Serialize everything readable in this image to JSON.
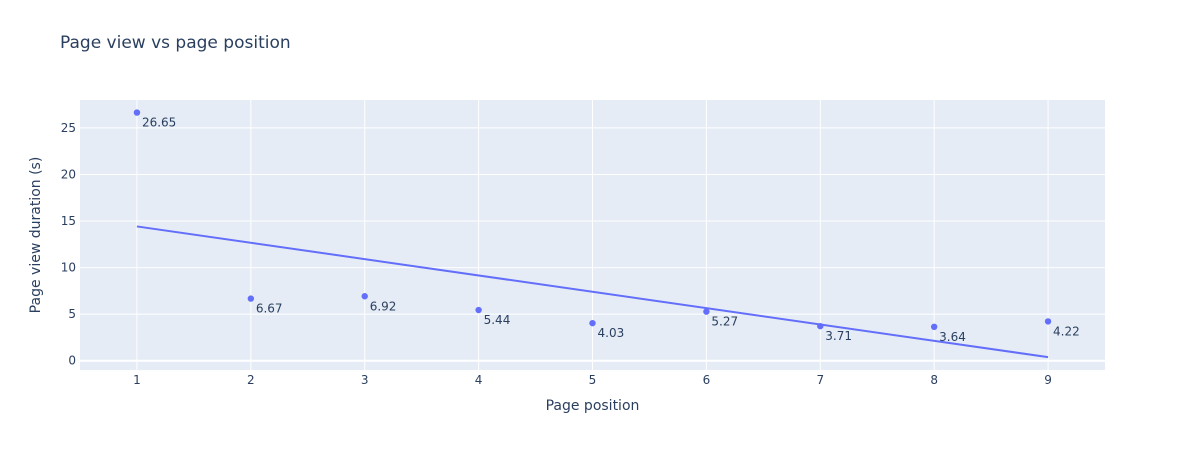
{
  "chart_data": {
    "type": "scatter",
    "title": "Page view vs page position",
    "xlabel": "Page position",
    "ylabel": "Page view duration (s)",
    "xlim": [
      0.5,
      9.5
    ],
    "ylim": [
      -1,
      28
    ],
    "x_ticks": [
      1,
      2,
      3,
      4,
      5,
      6,
      7,
      8,
      9
    ],
    "y_ticks": [
      0,
      5,
      10,
      15,
      20,
      25
    ],
    "grid": true,
    "series": [
      {
        "mode": "markers+text",
        "x": [
          1,
          2,
          3,
          4,
          5,
          6,
          7,
          8,
          9
        ],
        "y": [
          26.65,
          6.67,
          6.92,
          5.44,
          4.03,
          5.27,
          3.71,
          3.64,
          4.22
        ],
        "labels": [
          "26.65",
          "6.67",
          "6.92",
          "5.44",
          "4.03",
          "5.27",
          "3.71",
          "3.64",
          "4.22"
        ],
        "color": "#636efa"
      },
      {
        "mode": "lines",
        "x": [
          1,
          9
        ],
        "y": [
          14.42,
          0.38
        ],
        "color": "#636efa"
      }
    ],
    "plot_bgcolor": "#e5ecf6",
    "grid_color": "#ffffff"
  }
}
